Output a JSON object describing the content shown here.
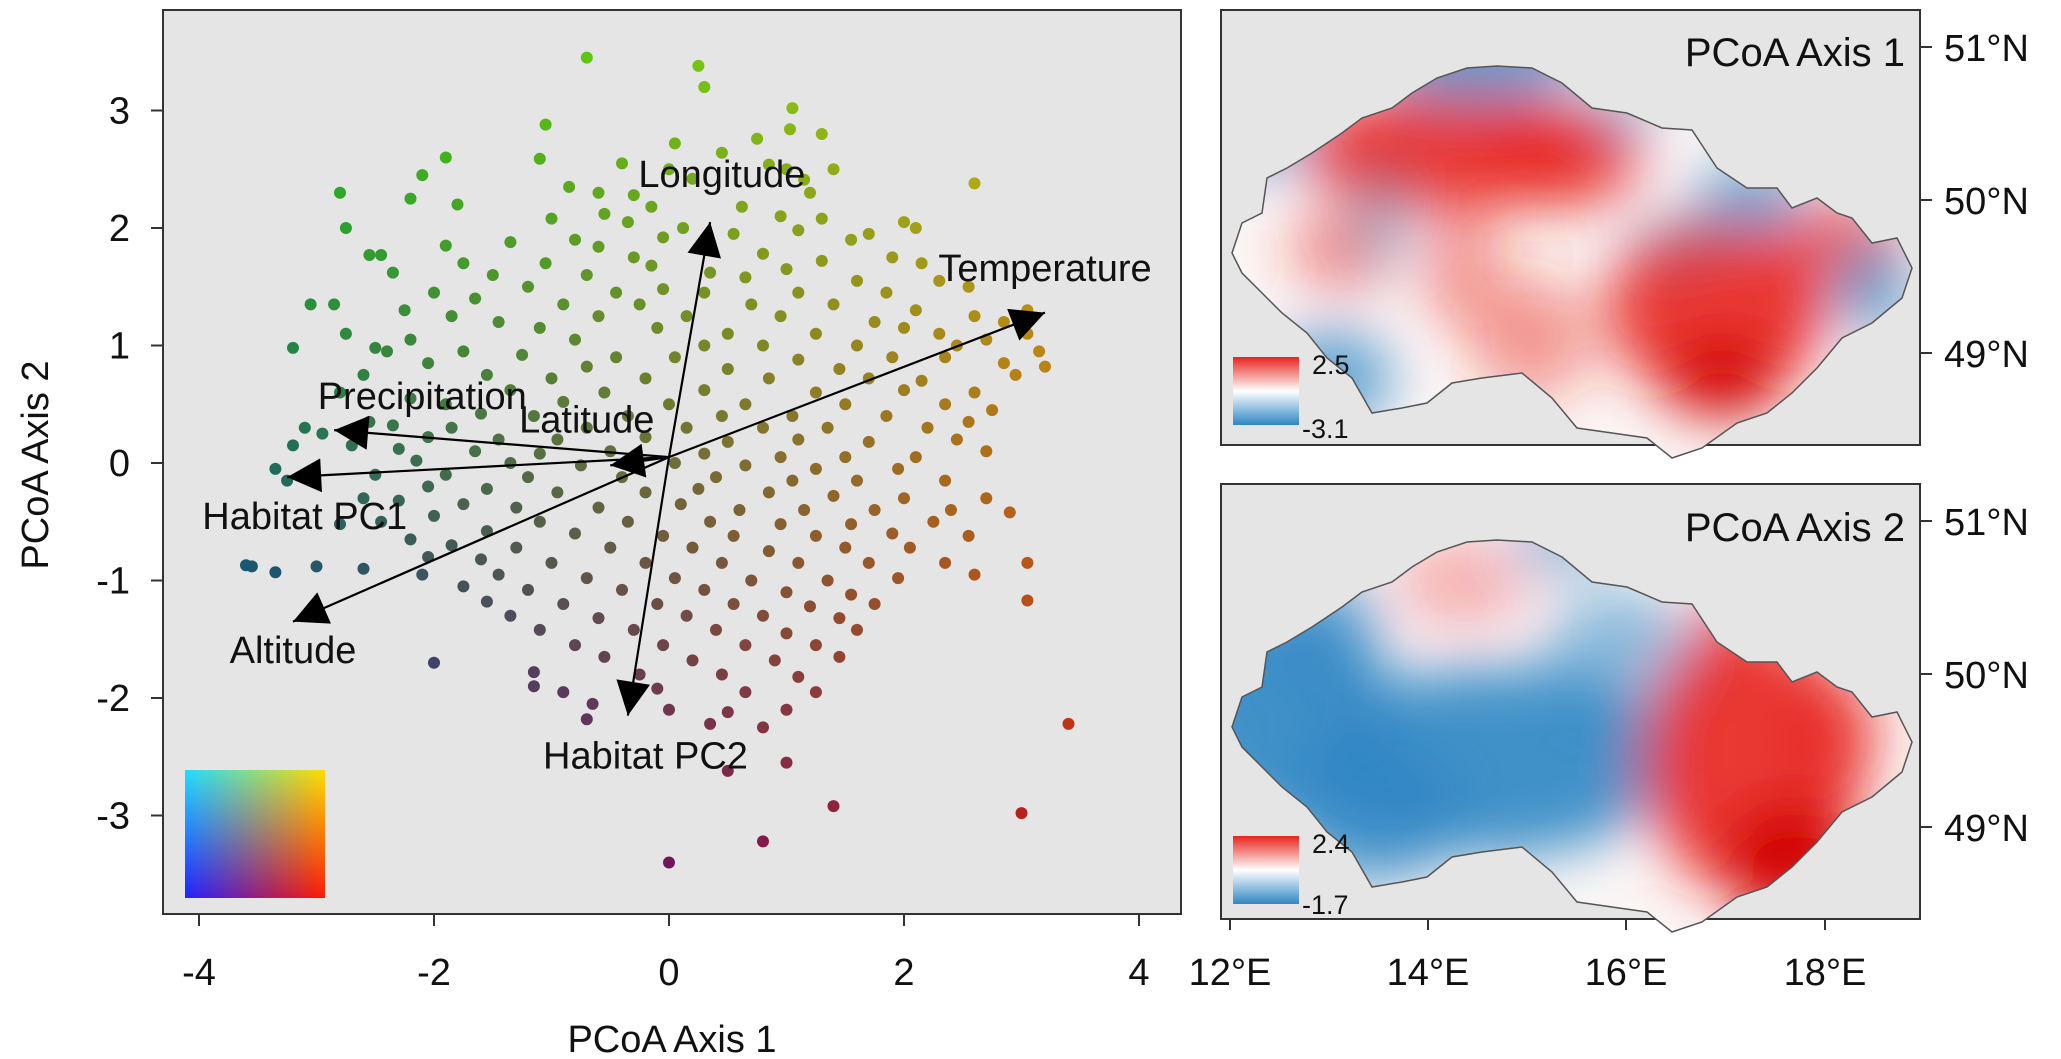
{
  "chart_data": [
    {
      "type": "scatter",
      "xlabel": "PCoA Axis 1",
      "ylabel": "PCoA Axis 2",
      "xlim": [
        -4.3,
        4.3
      ],
      "ylim": [
        -3.8,
        3.8
      ],
      "xticks": [
        "-4",
        "-2",
        "0",
        "2",
        "4"
      ],
      "yticks": [
        "-3",
        "-2",
        "-1",
        "0",
        "1",
        "2",
        "3"
      ],
      "grid": false,
      "point_color": "2D colour key: x -> red, y -> green, lower-left -> blue",
      "points": [
        [
          -0.7,
          3.45
        ],
        [
          0.25,
          3.38
        ],
        [
          0.3,
          3.2
        ],
        [
          1.05,
          3.02
        ],
        [
          -1.05,
          2.88
        ],
        [
          1.03,
          2.84
        ],
        [
          1.3,
          2.8
        ],
        [
          0.05,
          2.72
        ],
        [
          0.75,
          2.76
        ],
        [
          0.45,
          2.64
        ],
        [
          -1.1,
          2.59
        ],
        [
          0.85,
          2.54
        ],
        [
          1.0,
          2.5
        ],
        [
          1.4,
          2.5
        ],
        [
          -0.4,
          2.55
        ],
        [
          -1.9,
          2.6
        ],
        [
          -2.1,
          2.45
        ],
        [
          0.0,
          2.5
        ],
        [
          0.2,
          2.42
        ],
        [
          1.15,
          2.41
        ],
        [
          2.6,
          2.38
        ],
        [
          -0.85,
          2.35
        ],
        [
          -0.6,
          2.3
        ],
        [
          -0.3,
          2.28
        ],
        [
          1.2,
          2.3
        ],
        [
          -2.8,
          2.3
        ],
        [
          -2.2,
          2.25
        ],
        [
          -1.8,
          2.2
        ],
        [
          -0.15,
          2.18
        ],
        [
          -0.55,
          2.12
        ],
        [
          0.62,
          2.18
        ],
        [
          0.95,
          2.1
        ],
        [
          1.3,
          2.08
        ],
        [
          -1.0,
          2.08
        ],
        [
          -0.35,
          2.05
        ],
        [
          0.12,
          2.0
        ],
        [
          2.0,
          2.05
        ],
        [
          -2.75,
          2.0
        ],
        [
          2.1,
          2.0
        ],
        [
          1.1,
          1.98
        ],
        [
          1.7,
          1.95
        ],
        [
          0.55,
          1.95
        ],
        [
          -0.05,
          1.92
        ],
        [
          -0.8,
          1.9
        ],
        [
          -1.35,
          1.88
        ],
        [
          -1.9,
          1.85
        ],
        [
          1.55,
          1.9
        ],
        [
          -2.55,
          1.77
        ],
        [
          -2.45,
          1.77
        ],
        [
          -0.6,
          1.84
        ],
        [
          -0.3,
          1.75
        ],
        [
          0.8,
          1.78
        ],
        [
          1.9,
          1.75
        ],
        [
          2.15,
          1.7
        ],
        [
          1.3,
          1.72
        ],
        [
          -1.75,
          1.7
        ],
        [
          -1.05,
          1.7
        ],
        [
          -0.15,
          1.68
        ],
        [
          0.35,
          1.62
        ],
        [
          1.0,
          1.65
        ],
        [
          -2.35,
          1.62
        ],
        [
          -1.5,
          1.6
        ],
        [
          -0.7,
          1.6
        ],
        [
          0.65,
          1.58
        ],
        [
          1.6,
          1.55
        ],
        [
          2.3,
          1.55
        ],
        [
          -1.2,
          1.5
        ],
        [
          -0.45,
          1.45
        ],
        [
          -0.05,
          1.48
        ],
        [
          0.3,
          1.45
        ],
        [
          1.1,
          1.45
        ],
        [
          1.85,
          1.45
        ],
        [
          2.55,
          1.5
        ],
        [
          -2.0,
          1.45
        ],
        [
          -1.65,
          1.4
        ],
        [
          -0.9,
          1.35
        ],
        [
          -0.25,
          1.35
        ],
        [
          0.7,
          1.35
        ],
        [
          1.4,
          1.35
        ],
        [
          2.1,
          1.3
        ],
        [
          3.05,
          1.3
        ],
        [
          -3.05,
          1.35
        ],
        [
          -2.85,
          1.35
        ],
        [
          -2.25,
          1.3
        ],
        [
          -1.85,
          1.25
        ],
        [
          -0.6,
          1.25
        ],
        [
          0.15,
          1.25
        ],
        [
          0.95,
          1.25
        ],
        [
          1.75,
          1.2
        ],
        [
          2.6,
          1.25
        ],
        [
          2.85,
          1.2
        ],
        [
          -1.45,
          1.2
        ],
        [
          -1.1,
          1.15
        ],
        [
          -0.1,
          1.15
        ],
        [
          0.5,
          1.1
        ],
        [
          1.25,
          1.1
        ],
        [
          2.0,
          1.15
        ],
        [
          2.3,
          1.1
        ],
        [
          3.05,
          1.1
        ],
        [
          -2.75,
          1.1
        ],
        [
          -2.2,
          1.05
        ],
        [
          -0.8,
          1.05
        ],
        [
          0.3,
          1.0
        ],
        [
          0.8,
          1.0
        ],
        [
          1.6,
          1.0
        ],
        [
          2.45,
          1.0
        ],
        [
          2.7,
          1.05
        ],
        [
          -3.2,
          0.98
        ],
        [
          -2.5,
          0.98
        ],
        [
          -2.4,
          0.95
        ],
        [
          -1.75,
          0.95
        ],
        [
          -1.25,
          0.92
        ],
        [
          -0.45,
          0.9
        ],
        [
          0.05,
          0.9
        ],
        [
          1.1,
          0.88
        ],
        [
          1.9,
          0.9
        ],
        [
          2.35,
          0.9
        ],
        [
          3.15,
          0.95
        ],
        [
          -2.05,
          0.85
        ],
        [
          -0.7,
          0.82
        ],
        [
          0.5,
          0.8
        ],
        [
          1.45,
          0.8
        ],
        [
          2.85,
          0.85
        ],
        [
          -2.6,
          0.75
        ],
        [
          -1.55,
          0.75
        ],
        [
          -1.0,
          0.72
        ],
        [
          -0.2,
          0.72
        ],
        [
          0.85,
          0.72
        ],
        [
          1.7,
          0.72
        ],
        [
          2.15,
          0.7
        ],
        [
          2.95,
          0.75
        ],
        [
          3.2,
          0.82
        ],
        [
          -1.35,
          0.62
        ],
        [
          -0.55,
          0.6
        ],
        [
          0.3,
          0.62
        ],
        [
          1.25,
          0.6
        ],
        [
          2.0,
          0.62
        ],
        [
          2.6,
          0.6
        ],
        [
          -2.8,
          0.6
        ],
        [
          -2.2,
          0.55
        ],
        [
          -1.9,
          0.5
        ],
        [
          -0.9,
          0.52
        ],
        [
          0.0,
          0.5
        ],
        [
          0.65,
          0.5
        ],
        [
          1.5,
          0.5
        ],
        [
          2.35,
          0.5
        ],
        [
          2.75,
          0.45
        ],
        [
          -1.6,
          0.42
        ],
        [
          -1.15,
          0.4
        ],
        [
          -0.35,
          0.4
        ],
        [
          0.45,
          0.4
        ],
        [
          1.05,
          0.4
        ],
        [
          1.85,
          0.4
        ],
        [
          2.55,
          0.35
        ],
        [
          -2.55,
          0.35
        ],
        [
          -2.35,
          0.32
        ],
        [
          -1.85,
          0.3
        ],
        [
          -0.7,
          0.3
        ],
        [
          0.15,
          0.3
        ],
        [
          0.8,
          0.3
        ],
        [
          1.35,
          0.3
        ],
        [
          2.2,
          0.3
        ],
        [
          -3.1,
          0.3
        ],
        [
          -2.95,
          0.25
        ],
        [
          -2.05,
          0.22
        ],
        [
          -1.45,
          0.2
        ],
        [
          -0.95,
          0.2
        ],
        [
          -0.2,
          0.22
        ],
        [
          0.5,
          0.18
        ],
        [
          1.1,
          0.2
        ],
        [
          1.7,
          0.18
        ],
        [
          2.45,
          0.2
        ],
        [
          -3.2,
          0.15
        ],
        [
          -2.7,
          0.15
        ],
        [
          -2.3,
          0.12
        ],
        [
          -1.65,
          0.1
        ],
        [
          -1.1,
          0.08
        ],
        [
          -0.5,
          0.1
        ],
        [
          0.3,
          0.08
        ],
        [
          0.95,
          0.05
        ],
        [
          1.5,
          0.05
        ],
        [
          2.1,
          0.05
        ],
        [
          2.7,
          0.1
        ],
        [
          -2.15,
          0.02
        ],
        [
          -1.35,
          0.0
        ],
        [
          -0.75,
          -0.02
        ],
        [
          0.05,
          0.0
        ],
        [
          0.65,
          -0.02
        ],
        [
          1.25,
          -0.05
        ],
        [
          1.95,
          -0.05
        ],
        [
          -3.35,
          -0.05
        ],
        [
          -3.25,
          -0.15
        ],
        [
          -2.5,
          -0.1
        ],
        [
          -1.9,
          -0.1
        ],
        [
          -1.2,
          -0.12
        ],
        [
          -0.4,
          -0.12
        ],
        [
          0.4,
          -0.12
        ],
        [
          1.05,
          -0.15
        ],
        [
          1.6,
          -0.15
        ],
        [
          2.35,
          -0.15
        ],
        [
          -2.05,
          -0.2
        ],
        [
          -1.55,
          -0.22
        ],
        [
          -0.95,
          -0.25
        ],
        [
          -0.2,
          -0.25
        ],
        [
          0.25,
          -0.22
        ],
        [
          0.85,
          -0.25
        ],
        [
          1.4,
          -0.28
        ],
        [
          2.0,
          -0.3
        ],
        [
          2.7,
          -0.3
        ],
        [
          -2.6,
          -0.3
        ],
        [
          -2.3,
          -0.32
        ],
        [
          -1.75,
          -0.35
        ],
        [
          -1.3,
          -0.38
        ],
        [
          -0.6,
          -0.38
        ],
        [
          0.1,
          -0.35
        ],
        [
          0.6,
          -0.4
        ],
        [
          1.15,
          -0.4
        ],
        [
          1.75,
          -0.4
        ],
        [
          2.4,
          -0.4
        ],
        [
          -2.0,
          -0.45
        ],
        [
          -1.1,
          -0.5
        ],
        [
          -0.35,
          -0.5
        ],
        [
          0.35,
          -0.5
        ],
        [
          0.95,
          -0.52
        ],
        [
          1.55,
          -0.52
        ],
        [
          2.25,
          -0.5
        ],
        [
          2.9,
          -0.42
        ],
        [
          -2.45,
          -0.5
        ],
        [
          -2.8,
          -0.52
        ],
        [
          -1.55,
          -0.58
        ],
        [
          -0.8,
          -0.6
        ],
        [
          -0.05,
          -0.62
        ],
        [
          0.55,
          -0.62
        ],
        [
          1.25,
          -0.62
        ],
        [
          1.9,
          -0.6
        ],
        [
          2.55,
          -0.62
        ],
        [
          -2.2,
          -0.65
        ],
        [
          -1.85,
          -0.7
        ],
        [
          -1.3,
          -0.72
        ],
        [
          -0.5,
          -0.72
        ],
        [
          0.2,
          -0.72
        ],
        [
          0.85,
          -0.75
        ],
        [
          1.5,
          -0.72
        ],
        [
          2.05,
          -0.72
        ],
        [
          -2.05,
          -0.8
        ],
        [
          -1.6,
          -0.82
        ],
        [
          -1.0,
          -0.85
        ],
        [
          -0.2,
          -0.85
        ],
        [
          0.45,
          -0.85
        ],
        [
          1.1,
          -0.85
        ],
        [
          1.7,
          -0.85
        ],
        [
          2.35,
          -0.85
        ],
        [
          3.05,
          -0.85
        ],
        [
          -3.6,
          -0.87
        ],
        [
          -3.55,
          -0.88
        ],
        [
          -3.35,
          -0.93
        ],
        [
          -3.0,
          -0.88
        ],
        [
          -2.6,
          -0.9
        ],
        [
          -2.1,
          -0.95
        ],
        [
          -1.45,
          -0.95
        ],
        [
          -0.7,
          -0.98
        ],
        [
          0.05,
          -0.98
        ],
        [
          0.7,
          -1.0
        ],
        [
          1.35,
          -1.0
        ],
        [
          1.95,
          -0.98
        ],
        [
          2.6,
          -0.95
        ],
        [
          -1.75,
          -1.05
        ],
        [
          -1.2,
          -1.08
        ],
        [
          -0.4,
          -1.08
        ],
        [
          0.3,
          -1.08
        ],
        [
          1.0,
          -1.1
        ],
        [
          1.55,
          -1.12
        ],
        [
          -1.55,
          -1.18
        ],
        [
          -0.9,
          -1.2
        ],
        [
          -0.1,
          -1.2
        ],
        [
          0.55,
          -1.2
        ],
        [
          1.2,
          -1.22
        ],
        [
          1.75,
          -1.2
        ],
        [
          -1.35,
          -1.3
        ],
        [
          -0.6,
          -1.32
        ],
        [
          0.15,
          -1.3
        ],
        [
          0.8,
          -1.3
        ],
        [
          1.45,
          -1.32
        ],
        [
          3.05,
          -1.17
        ],
        [
          -1.1,
          -1.42
        ],
        [
          -0.3,
          -1.42
        ],
        [
          0.4,
          -1.42
        ],
        [
          1.0,
          -1.45
        ],
        [
          1.6,
          -1.42
        ],
        [
          -0.8,
          -1.55
        ],
        [
          -0.05,
          -1.55
        ],
        [
          0.65,
          -1.55
        ],
        [
          1.25,
          -1.55
        ],
        [
          -2.0,
          -1.7
        ],
        [
          -0.55,
          -1.65
        ],
        [
          0.2,
          -1.68
        ],
        [
          0.9,
          -1.68
        ],
        [
          1.45,
          -1.65
        ],
        [
          -1.15,
          -1.78
        ],
        [
          -0.25,
          -1.8
        ],
        [
          0.45,
          -1.8
        ],
        [
          1.1,
          -1.82
        ],
        [
          -1.15,
          -1.9
        ],
        [
          -0.9,
          -1.95
        ],
        [
          -0.1,
          -1.92
        ],
        [
          0.65,
          -1.95
        ],
        [
          1.25,
          -1.95
        ],
        [
          -0.65,
          -2.05
        ],
        [
          0.0,
          -2.1
        ],
        [
          0.5,
          -2.12
        ],
        [
          1.0,
          -2.1
        ],
        [
          -0.7,
          -2.18
        ],
        [
          0.35,
          -2.22
        ],
        [
          0.8,
          -2.25
        ],
        [
          1.0,
          -2.55
        ],
        [
          0.5,
          -2.62
        ],
        [
          3.4,
          -2.22
        ],
        [
          1.4,
          -2.92
        ],
        [
          3.0,
          -2.98
        ],
        [
          0.8,
          -3.22
        ],
        [
          0.0,
          -3.4
        ]
      ],
      "arrows": [
        {
          "label": "Longitude",
          "x": 0.35,
          "y": 2.05
        },
        {
          "label": "Temperature",
          "x": 3.2,
          "y": 1.28
        },
        {
          "label": "Precipitation",
          "x": -2.85,
          "y": 0.28
        },
        {
          "label": "Latitude",
          "x": -0.5,
          "y": -0.02
        },
        {
          "label": "Habitat PC1",
          "x": -3.25,
          "y": -0.12
        },
        {
          "label": "Altitude",
          "x": -3.2,
          "y": -1.35
        },
        {
          "label": "Habitat PC2",
          "x": -0.35,
          "y": -2.15
        }
      ]
    },
    {
      "type": "heatmap",
      "title": "PCoA Axis 1",
      "legend_max": "2.5",
      "legend_min": "-3.1",
      "lon_ticks": [
        "12°E",
        "14°E",
        "16°E",
        "18°E"
      ],
      "lat_ticks": [
        "51°N",
        "50°N",
        "49°N"
      ],
      "color_high": "#e8241c",
      "color_low": "#2e86c4"
    },
    {
      "type": "heatmap",
      "title": "PCoA Axis 2",
      "legend_max": "2.4",
      "legend_min": "-1.7",
      "lon_ticks": [
        "12°E",
        "14°E",
        "16°E",
        "18°E"
      ],
      "lat_ticks": [
        "51°N",
        "50°N",
        "49°N"
      ],
      "color_high": "#e8241c",
      "color_low": "#2e86c4"
    }
  ]
}
